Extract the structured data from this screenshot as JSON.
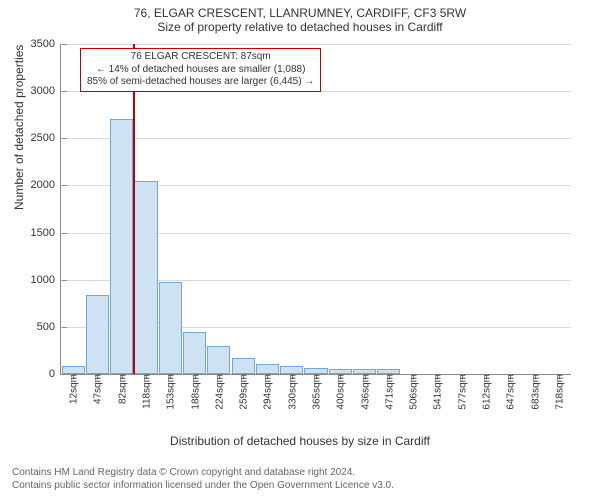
{
  "titles": {
    "address": "76, ELGAR CRESCENT, LLANRUMNEY, CARDIFF, CF3 5RW",
    "subtitle": "Size of property relative to detached houses in Cardiff"
  },
  "axes": {
    "ylabel": "Number of detached properties",
    "xlabel": "Distribution of detached houses by size in Cardiff",
    "ylim": [
      0,
      3500
    ],
    "ytick_step": 500,
    "yticks": [
      0,
      500,
      1000,
      1500,
      2000,
      2500,
      3000,
      3500
    ]
  },
  "style": {
    "bar_fill": "#cfe2f3",
    "bar_border": "#6fa8dc",
    "grid_color": "#d9d9d9",
    "axis_color": "#888888",
    "ref_line_color": "#c00000",
    "annot_border": "#c00000",
    "background_color": "#ffffff",
    "title_fontsize": 12,
    "label_fontsize": 12,
    "tick_fontsize": 10,
    "bar_width_ratio": 0.95
  },
  "reference": {
    "value_sqm": 87,
    "x_label": "82sqm"
  },
  "annot": {
    "line1": "76 ELGAR CRESCENT: 87sqm",
    "line2": "← 14% of detached houses are smaller (1,088)",
    "line3": "85% of semi-detached houses are larger (6,445) →"
  },
  "histogram": {
    "type": "histogram",
    "xticks": [
      "12sqm",
      "47sqm",
      "82sqm",
      "118sqm",
      "153sqm",
      "188sqm",
      "224sqm",
      "259sqm",
      "294sqm",
      "330sqm",
      "365sqm",
      "400sqm",
      "436sqm",
      "471sqm",
      "506sqm",
      "541sqm",
      "577sqm",
      "612sqm",
      "647sqm",
      "683sqm",
      "718sqm"
    ],
    "values": [
      90,
      840,
      2700,
      2050,
      980,
      450,
      300,
      170,
      110,
      80,
      60,
      55,
      50,
      48,
      0,
      0,
      0,
      0,
      0,
      0,
      0
    ]
  },
  "footer": {
    "line1": "Contains HM Land Registry data © Crown copyright and database right 2024.",
    "line2": "Contains public sector information licensed under the Open Government Licence v3.0."
  }
}
